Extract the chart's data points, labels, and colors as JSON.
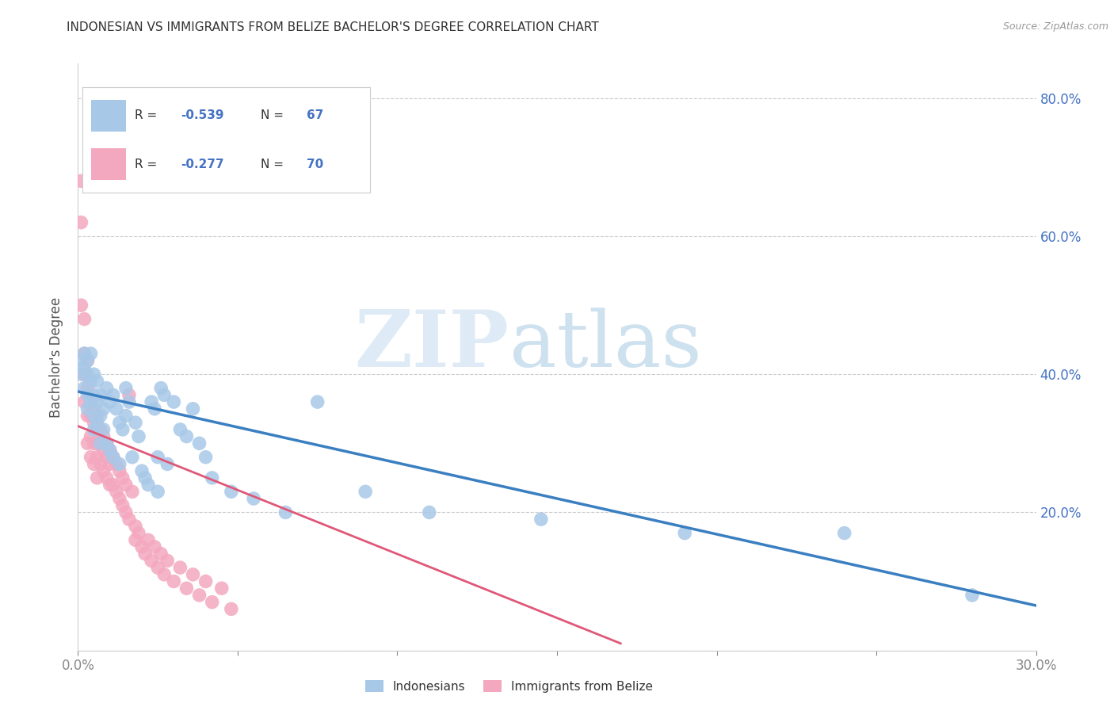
{
  "title": "INDONESIAN VS IMMIGRANTS FROM BELIZE BACHELOR'S DEGREE CORRELATION CHART",
  "source": "Source: ZipAtlas.com",
  "ylabel": "Bachelor's Degree",
  "x_range": [
    0.0,
    0.3
  ],
  "y_range": [
    0.0,
    0.85
  ],
  "indonesian_label": "Indonesians",
  "belize_label": "Immigrants from Belize",
  "blue_color": "#a8c8e8",
  "pink_color": "#f4a8c0",
  "blue_line_color": "#3a7fc1",
  "pink_line_color": "#e05878",
  "r_blue": "-0.539",
  "n_blue": "67",
  "r_pink": "-0.277",
  "n_pink": "70",
  "indonesian_x": [
    0.001,
    0.001,
    0.002,
    0.002,
    0.002,
    0.003,
    0.003,
    0.003,
    0.003,
    0.004,
    0.004,
    0.004,
    0.005,
    0.005,
    0.005,
    0.005,
    0.006,
    0.006,
    0.006,
    0.007,
    0.007,
    0.007,
    0.008,
    0.008,
    0.009,
    0.009,
    0.01,
    0.01,
    0.011,
    0.011,
    0.012,
    0.013,
    0.013,
    0.014,
    0.015,
    0.015,
    0.016,
    0.017,
    0.018,
    0.019,
    0.02,
    0.021,
    0.022,
    0.023,
    0.024,
    0.025,
    0.025,
    0.026,
    0.027,
    0.028,
    0.03,
    0.032,
    0.034,
    0.036,
    0.038,
    0.04,
    0.042,
    0.048,
    0.055,
    0.065,
    0.075,
    0.09,
    0.11,
    0.145,
    0.19,
    0.24,
    0.28
  ],
  "indonesian_y": [
    0.42,
    0.4,
    0.43,
    0.41,
    0.38,
    0.42,
    0.4,
    0.37,
    0.35,
    0.43,
    0.39,
    0.36,
    0.4,
    0.37,
    0.34,
    0.32,
    0.39,
    0.36,
    0.33,
    0.37,
    0.34,
    0.3,
    0.35,
    0.32,
    0.38,
    0.3,
    0.36,
    0.29,
    0.37,
    0.28,
    0.35,
    0.33,
    0.27,
    0.32,
    0.38,
    0.34,
    0.36,
    0.28,
    0.33,
    0.31,
    0.26,
    0.25,
    0.24,
    0.36,
    0.35,
    0.28,
    0.23,
    0.38,
    0.37,
    0.27,
    0.36,
    0.32,
    0.31,
    0.35,
    0.3,
    0.28,
    0.25,
    0.23,
    0.22,
    0.2,
    0.36,
    0.23,
    0.2,
    0.19,
    0.17,
    0.17,
    0.08
  ],
  "belize_x": [
    0.001,
    0.001,
    0.001,
    0.002,
    0.002,
    0.002,
    0.002,
    0.003,
    0.003,
    0.003,
    0.003,
    0.004,
    0.004,
    0.004,
    0.004,
    0.005,
    0.005,
    0.005,
    0.005,
    0.006,
    0.006,
    0.006,
    0.006,
    0.006,
    0.007,
    0.007,
    0.007,
    0.008,
    0.008,
    0.008,
    0.009,
    0.009,
    0.009,
    0.01,
    0.01,
    0.01,
    0.011,
    0.011,
    0.012,
    0.012,
    0.013,
    0.013,
    0.014,
    0.014,
    0.015,
    0.015,
    0.016,
    0.016,
    0.017,
    0.018,
    0.018,
    0.019,
    0.02,
    0.021,
    0.022,
    0.023,
    0.024,
    0.025,
    0.026,
    0.027,
    0.028,
    0.03,
    0.032,
    0.034,
    0.036,
    0.038,
    0.04,
    0.042,
    0.045,
    0.048
  ],
  "belize_y": [
    0.68,
    0.62,
    0.5,
    0.48,
    0.43,
    0.4,
    0.36,
    0.42,
    0.38,
    0.34,
    0.3,
    0.36,
    0.34,
    0.31,
    0.28,
    0.35,
    0.33,
    0.3,
    0.27,
    0.34,
    0.32,
    0.3,
    0.28,
    0.25,
    0.32,
    0.3,
    0.27,
    0.31,
    0.29,
    0.26,
    0.3,
    0.28,
    0.25,
    0.29,
    0.27,
    0.24,
    0.28,
    0.24,
    0.27,
    0.23,
    0.26,
    0.22,
    0.25,
    0.21,
    0.24,
    0.2,
    0.37,
    0.19,
    0.23,
    0.18,
    0.16,
    0.17,
    0.15,
    0.14,
    0.16,
    0.13,
    0.15,
    0.12,
    0.14,
    0.11,
    0.13,
    0.1,
    0.12,
    0.09,
    0.11,
    0.08,
    0.1,
    0.07,
    0.09,
    0.06
  ],
  "blue_line_x": [
    0.0,
    0.3
  ],
  "blue_line_y": [
    0.375,
    0.065
  ],
  "pink_line_x": [
    0.0,
    0.17
  ],
  "pink_line_y": [
    0.325,
    0.01
  ]
}
